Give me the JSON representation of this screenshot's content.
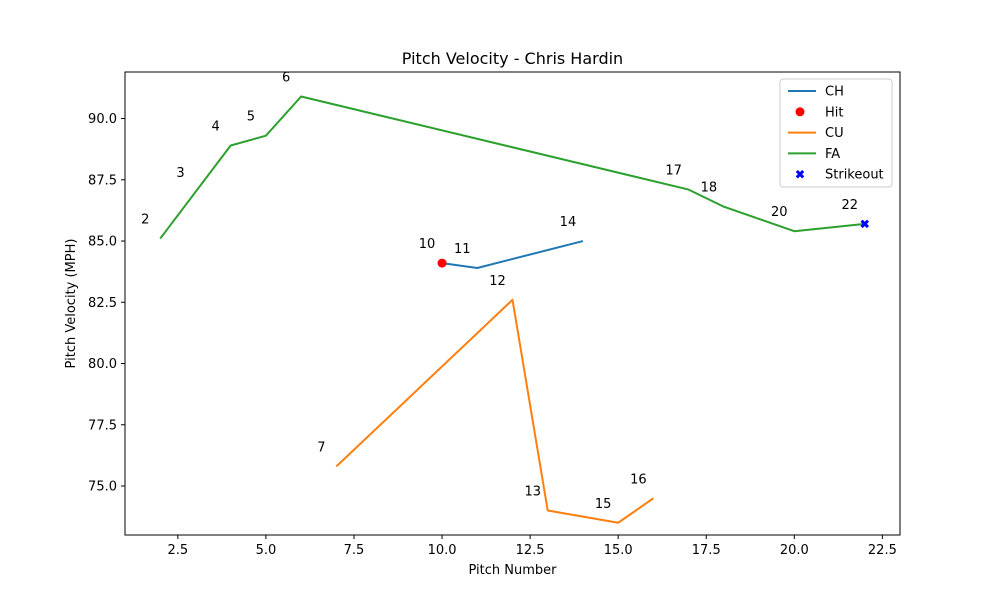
{
  "chart_data": {
    "type": "line",
    "title": "Pitch Velocity - Chris Hardin",
    "xlabel": "Pitch Number",
    "ylabel": "Pitch Velocity (MPH)",
    "xlim": [
      1.0,
      23.0
    ],
    "ylim": [
      73.0,
      91.9
    ],
    "xticks": [
      2.5,
      5.0,
      7.5,
      10.0,
      12.5,
      15.0,
      17.5,
      20.0,
      22.5
    ],
    "yticks": [
      75.0,
      77.5,
      80.0,
      82.5,
      85.0,
      87.5,
      90.0
    ],
    "grid": false,
    "legend_position": "top-right",
    "series": [
      {
        "name": "CH",
        "color": "#1f77b4",
        "x": [
          10,
          11,
          14
        ],
        "y": [
          84.1,
          83.9,
          85.0
        ]
      },
      {
        "name": "CU",
        "color": "#ff7f0e",
        "x": [
          7,
          12,
          13,
          15,
          16
        ],
        "y": [
          75.8,
          82.6,
          74.0,
          73.5,
          74.5
        ]
      },
      {
        "name": "FA",
        "color": "#2ca02c",
        "x": [
          2,
          4,
          5,
          6,
          17,
          18,
          20,
          22
        ],
        "y": [
          85.1,
          88.9,
          89.3,
          90.9,
          87.1,
          86.4,
          85.4,
          85.7
        ]
      }
    ],
    "markers": [
      {
        "name": "Hit",
        "color": "#ff0000",
        "shape": "circle",
        "x": [
          10
        ],
        "y": [
          84.1
        ]
      },
      {
        "name": "Strikeout",
        "color": "#0000ff",
        "shape": "x",
        "x": [
          22
        ],
        "y": [
          85.7
        ]
      }
    ],
    "legend_order": [
      "CH",
      "Hit",
      "CU",
      "FA",
      "Strikeout"
    ],
    "annotations": [
      {
        "text": "2",
        "x": 2,
        "y": 85.1
      },
      {
        "text": "3",
        "x": 3,
        "y": 87.0
      },
      {
        "text": "4",
        "x": 4,
        "y": 88.9
      },
      {
        "text": "5",
        "x": 5,
        "y": 89.3
      },
      {
        "text": "6",
        "x": 6,
        "y": 90.9
      },
      {
        "text": "7",
        "x": 7,
        "y": 75.8
      },
      {
        "text": "10",
        "x": 10,
        "y": 84.1
      },
      {
        "text": "11",
        "x": 11,
        "y": 83.9
      },
      {
        "text": "12",
        "x": 12,
        "y": 82.6
      },
      {
        "text": "13",
        "x": 13,
        "y": 74.0
      },
      {
        "text": "14",
        "x": 14,
        "y": 85.0
      },
      {
        "text": "15",
        "x": 15,
        "y": 73.5
      },
      {
        "text": "16",
        "x": 16,
        "y": 74.5
      },
      {
        "text": "17",
        "x": 17,
        "y": 87.1
      },
      {
        "text": "18",
        "x": 18,
        "y": 86.4
      },
      {
        "text": "20",
        "x": 20,
        "y": 85.4
      },
      {
        "text": "22",
        "x": 22,
        "y": 85.7
      }
    ]
  }
}
